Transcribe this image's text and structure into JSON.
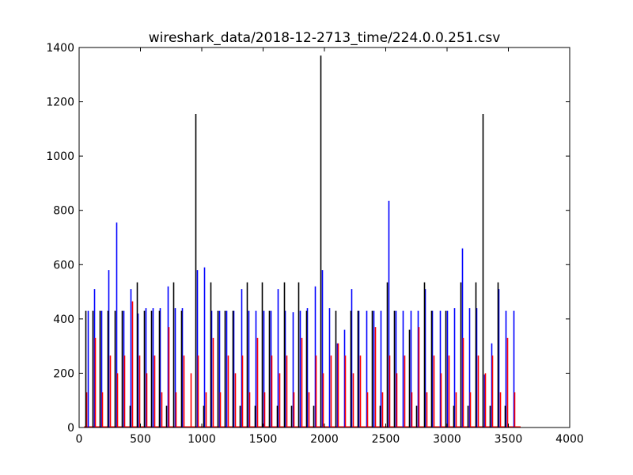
{
  "chart_data": {
    "type": "bar",
    "title": "wireshark_data/2018-12-2713_time/224.0.0.251.csv",
    "xlabel": "",
    "ylabel": "",
    "xlim": [
      0,
      4000
    ],
    "ylim": [
      0,
      1400
    ],
    "xticks": [
      0,
      500,
      1000,
      1500,
      2000,
      2500,
      3000,
      3500,
      4000
    ],
    "yticks": [
      0,
      200,
      400,
      600,
      800,
      1000,
      1200,
      1400
    ],
    "grid": false,
    "legend": "none",
    "series": [
      {
        "color": "#0000ff",
        "points": [
          [
            70,
            430
          ],
          [
            120,
            510
          ],
          [
            180,
            430
          ],
          [
            240,
            580
          ],
          [
            300,
            755
          ],
          [
            360,
            430
          ],
          [
            420,
            510
          ],
          [
            480,
            420
          ],
          [
            540,
            440
          ],
          [
            600,
            440
          ],
          [
            660,
            440
          ],
          [
            720,
            520
          ],
          [
            780,
            440
          ],
          [
            840,
            440
          ],
          [
            960,
            580
          ],
          [
            1020,
            590
          ],
          [
            1080,
            430
          ],
          [
            1140,
            430
          ],
          [
            1200,
            430
          ],
          [
            1260,
            430
          ],
          [
            1320,
            510
          ],
          [
            1380,
            430
          ],
          [
            1440,
            430
          ],
          [
            1500,
            430
          ],
          [
            1560,
            430
          ],
          [
            1620,
            510
          ],
          [
            1680,
            430
          ],
          [
            1740,
            425
          ],
          [
            1800,
            430
          ],
          [
            1860,
            440
          ],
          [
            1920,
            520
          ],
          [
            1980,
            580
          ],
          [
            2040,
            440
          ],
          [
            2100,
            310
          ],
          [
            2160,
            360
          ],
          [
            2220,
            510
          ],
          [
            2280,
            430
          ],
          [
            2340,
            430
          ],
          [
            2400,
            430
          ],
          [
            2460,
            430
          ],
          [
            2520,
            835
          ],
          [
            2580,
            430
          ],
          [
            2640,
            430
          ],
          [
            2700,
            430
          ],
          [
            2760,
            430
          ],
          [
            2820,
            510
          ],
          [
            2880,
            430
          ],
          [
            2940,
            430
          ],
          [
            3000,
            430
          ],
          [
            3060,
            440
          ],
          [
            3120,
            660
          ],
          [
            3180,
            440
          ],
          [
            3240,
            440
          ],
          [
            3300,
            195
          ],
          [
            3360,
            310
          ],
          [
            3420,
            510
          ],
          [
            3480,
            430
          ],
          [
            3540,
            430
          ]
        ]
      },
      {
        "color": "#ff0000",
        "points": [
          [
            60,
            130
          ],
          [
            130,
            330
          ],
          [
            190,
            130
          ],
          [
            250,
            265
          ],
          [
            310,
            200
          ],
          [
            370,
            265
          ],
          [
            430,
            465
          ],
          [
            490,
            265
          ],
          [
            550,
            200
          ],
          [
            610,
            265
          ],
          [
            670,
            130
          ],
          [
            730,
            370
          ],
          [
            790,
            130
          ],
          [
            850,
            265
          ],
          [
            910,
            200
          ],
          [
            970,
            265
          ],
          [
            1030,
            130
          ],
          [
            1090,
            330
          ],
          [
            1150,
            130
          ],
          [
            1210,
            265
          ],
          [
            1270,
            200
          ],
          [
            1330,
            265
          ],
          [
            1390,
            130
          ],
          [
            1450,
            330
          ],
          [
            1510,
            130
          ],
          [
            1570,
            265
          ],
          [
            1630,
            200
          ],
          [
            1690,
            265
          ],
          [
            1750,
            130
          ],
          [
            1810,
            330
          ],
          [
            1870,
            130
          ],
          [
            1930,
            265
          ],
          [
            1990,
            200
          ],
          [
            2050,
            265
          ],
          [
            2110,
            310
          ],
          [
            2170,
            265
          ],
          [
            2230,
            200
          ],
          [
            2290,
            265
          ],
          [
            2350,
            130
          ],
          [
            2410,
            370
          ],
          [
            2470,
            130
          ],
          [
            2530,
            265
          ],
          [
            2590,
            200
          ],
          [
            2650,
            265
          ],
          [
            2710,
            130
          ],
          [
            2770,
            370
          ],
          [
            2830,
            130
          ],
          [
            2890,
            265
          ],
          [
            2950,
            200
          ],
          [
            3010,
            265
          ],
          [
            3070,
            130
          ],
          [
            3130,
            330
          ],
          [
            3190,
            130
          ],
          [
            3250,
            265
          ],
          [
            3310,
            200
          ],
          [
            3370,
            265
          ],
          [
            3430,
            130
          ],
          [
            3490,
            330
          ],
          [
            3550,
            130
          ]
        ]
      },
      {
        "color": "#000000",
        "points": [
          [
            50,
            430
          ],
          [
            110,
            430
          ],
          [
            170,
            430
          ],
          [
            230,
            430
          ],
          [
            290,
            430
          ],
          [
            350,
            430
          ],
          [
            410,
            80
          ],
          [
            470,
            535
          ],
          [
            530,
            430
          ],
          [
            590,
            430
          ],
          [
            650,
            430
          ],
          [
            710,
            80
          ],
          [
            770,
            535
          ],
          [
            830,
            430
          ],
          [
            950,
            1155
          ],
          [
            1010,
            80
          ],
          [
            1070,
            535
          ],
          [
            1130,
            430
          ],
          [
            1190,
            430
          ],
          [
            1250,
            430
          ],
          [
            1310,
            80
          ],
          [
            1370,
            535
          ],
          [
            1430,
            80
          ],
          [
            1490,
            535
          ],
          [
            1550,
            430
          ],
          [
            1610,
            80
          ],
          [
            1670,
            535
          ],
          [
            1730,
            80
          ],
          [
            1790,
            535
          ],
          [
            1850,
            430
          ],
          [
            1910,
            80
          ],
          [
            1970,
            1370
          ],
          [
            2090,
            430
          ],
          [
            2210,
            430
          ],
          [
            2270,
            430
          ],
          [
            2390,
            430
          ],
          [
            2450,
            80
          ],
          [
            2510,
            535
          ],
          [
            2570,
            430
          ],
          [
            2690,
            360
          ],
          [
            2750,
            80
          ],
          [
            2810,
            535
          ],
          [
            2870,
            430
          ],
          [
            2990,
            430
          ],
          [
            3050,
            80
          ],
          [
            3110,
            535
          ],
          [
            3170,
            80
          ],
          [
            3230,
            535
          ],
          [
            3290,
            1155
          ],
          [
            3350,
            80
          ],
          [
            3410,
            535
          ],
          [
            3470,
            80
          ]
        ]
      }
    ]
  }
}
